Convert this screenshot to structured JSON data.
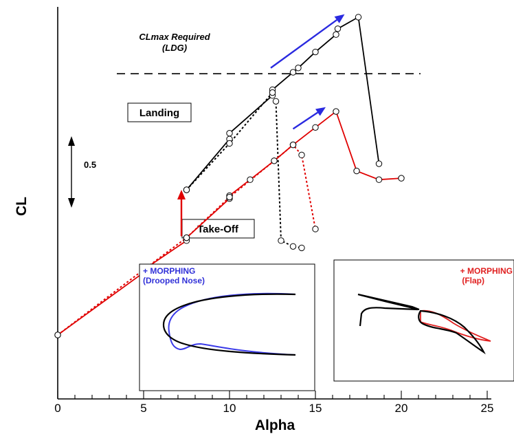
{
  "chart_data": {
    "type": "line",
    "xlabel": "Alpha",
    "ylabel": "CL",
    "xlim": [
      0,
      25
    ],
    "xticks": [
      "0",
      "5",
      "10",
      "15",
      "20",
      "25"
    ],
    "grid": false,
    "annotations": {
      "clmax_required": "CLmax Required",
      "clmax_required_sub": "(LDG)",
      "landing": "Landing",
      "takeoff": "Take-Off",
      "scale_bar": "0.5",
      "inset_nose_title": "+ MORPHING",
      "inset_nose_sub": "(Drooped Nose)",
      "inset_flap_title": "+ MORPHING",
      "inset_flap_sub": "(Flap)"
    },
    "clmax_required_value": 2.4,
    "series": [
      {
        "color": "#000000",
        "style": "solid",
        "points": [
          [
            7.5,
            1.6
          ],
          [
            10,
            1.95
          ],
          [
            10,
            1.99
          ],
          [
            12.5,
            2.25
          ],
          [
            12.5,
            2.29
          ],
          [
            13.7,
            2.41
          ],
          [
            14,
            2.44
          ],
          [
            15,
            2.55
          ],
          [
            16.2,
            2.67
          ],
          [
            16.3,
            2.71
          ],
          [
            17.5,
            2.79
          ],
          [
            18.7,
            1.78
          ]
        ]
      },
      {
        "color": "#000000",
        "style": "dotted",
        "points": [
          [
            7.5,
            1.6
          ],
          [
            10,
            1.92
          ],
          [
            12.5,
            2.27
          ],
          [
            12.7,
            2.21
          ],
          [
            13,
            1.25
          ],
          [
            13.7,
            1.21
          ],
          [
            14.2,
            1.2
          ]
        ]
      },
      {
        "color": "#e00000",
        "style": "solid",
        "points": [
          [
            0,
            0.6
          ],
          [
            5,
            1.03
          ],
          [
            5,
            1.05
          ],
          [
            7.5,
            1.25
          ],
          [
            7.5,
            1.27
          ],
          [
            10,
            1.54
          ],
          [
            10,
            1.56
          ],
          [
            11.2,
            1.67
          ],
          [
            12.6,
            1.8
          ],
          [
            13.7,
            1.91
          ],
          [
            15,
            2.03
          ],
          [
            16.2,
            2.14
          ],
          [
            17.4,
            1.73
          ],
          [
            18.7,
            1.67
          ],
          [
            20,
            1.68
          ]
        ]
      },
      {
        "color": "#e00000",
        "style": "dotted",
        "points": [
          [
            0,
            0.6
          ],
          [
            5,
            1.05
          ],
          [
            7.5,
            1.27
          ],
          [
            10,
            1.55
          ],
          [
            12.6,
            1.8
          ],
          [
            13.7,
            1.91
          ],
          [
            14.2,
            1.84
          ],
          [
            15,
            1.33
          ]
        ]
      }
    ],
    "arrows": [
      {
        "color": "#2a2ae0",
        "from": [
          12.4,
          2.44
        ],
        "to": [
          16.7,
          2.81
        ]
      },
      {
        "color": "#2a2ae0",
        "from": [
          13.7,
          2.02
        ],
        "to": [
          15.6,
          2.17
        ]
      },
      {
        "color": "#e00000",
        "from": [
          7.2,
          1.28
        ],
        "to": [
          7.2,
          1.6
        ]
      }
    ]
  }
}
